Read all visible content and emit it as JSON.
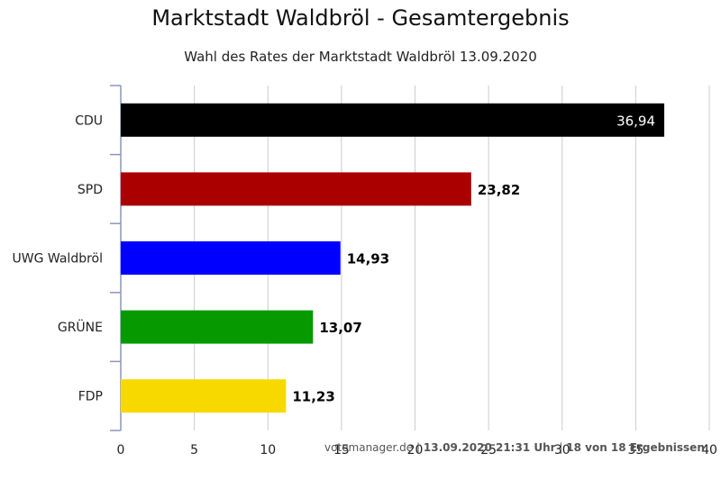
{
  "chart_data": {
    "type": "bar",
    "orientation": "horizontal",
    "title": "Marktstadt Waldbröl - Gesamtergebnis",
    "subtitle": "Wahl des Rates der Marktstadt Waldbröl 13.09.2020",
    "categories": [
      "CDU",
      "SPD",
      "UWG Waldbröl",
      "GRÜNE",
      "FDP"
    ],
    "values": [
      36.94,
      23.82,
      14.93,
      13.07,
      11.23
    ],
    "value_labels": [
      "36,94",
      "23,82",
      "14,93",
      "13,07",
      "11,23"
    ],
    "colors": [
      "#000000",
      "#aa0000",
      "#0000ff",
      "#079a00",
      "#f7d900"
    ],
    "xlim": [
      0,
      40
    ],
    "xticks": [
      0,
      5,
      10,
      15,
      20,
      25,
      30,
      35,
      40
    ],
    "grid": true,
    "xlabel": "",
    "ylabel": ""
  },
  "footer": {
    "source": "votemanager.de",
    "separator": "|",
    "timestamp": "13.09.2020 21:31 Uhr",
    "separator2": "|",
    "progress": "18 von 18 Ergebnissen"
  }
}
